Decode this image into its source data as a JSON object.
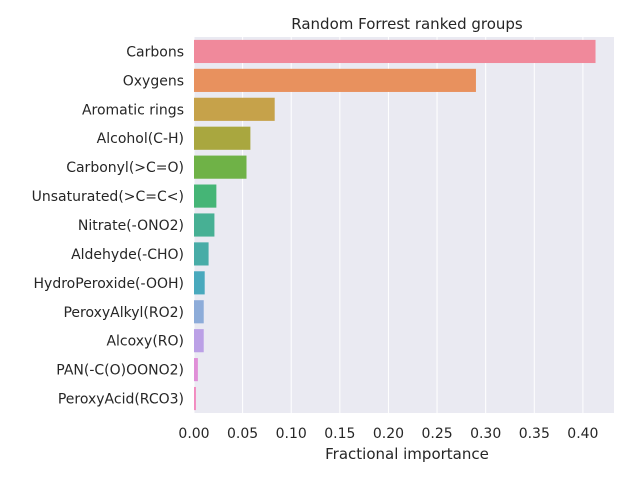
{
  "chart_data": {
    "type": "bar",
    "orientation": "horizontal",
    "title": "Random Forrest ranked groups",
    "xlabel": "Fractional importance",
    "ylabel": "",
    "xlim": [
      0,
      0.432
    ],
    "xticks": [
      0.0,
      0.05,
      0.1,
      0.15,
      0.2,
      0.25,
      0.3,
      0.35,
      0.4
    ],
    "xtick_labels": [
      "0.00",
      "0.05",
      "0.10",
      "0.15",
      "0.20",
      "0.25",
      "0.30",
      "0.35",
      "0.40"
    ],
    "grid": true,
    "background": "#eaeaf2",
    "categories": [
      "Carbons",
      "Oxygens",
      "Aromatic rings",
      "Alcohol(C-H)",
      "Carbonyl(>C=O)",
      "Unsaturated(>C=C<)",
      "Nitrate(-ONO2)",
      "Aldehyde(-CHO)",
      "HydroPeroxide(-OOH)",
      "PeroxyAlkyl(RO2)",
      "Alcoxy(RO)",
      "PAN(-C(O)OONO2)",
      "PeroxyAcid(RCO3)"
    ],
    "values": [
      0.413,
      0.29,
      0.083,
      0.058,
      0.054,
      0.023,
      0.021,
      0.015,
      0.011,
      0.01,
      0.01,
      0.004,
      0.002
    ],
    "colors": [
      "#f0899b",
      "#e8915e",
      "#c6a24a",
      "#a9a73f",
      "#6fb247",
      "#45b576",
      "#47b094",
      "#48aca7",
      "#49a9bd",
      "#8dacd9",
      "#bba0e6",
      "#e08fd8",
      "#f28bc0"
    ]
  }
}
